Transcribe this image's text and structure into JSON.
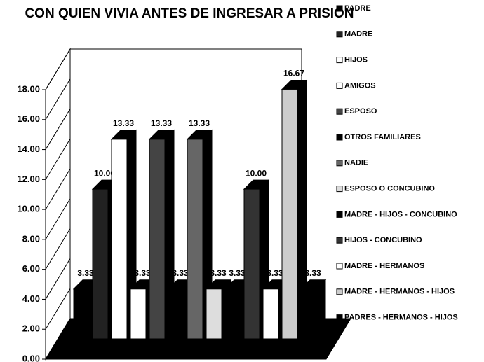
{
  "chart_data": {
    "type": "bar3d",
    "title": "CON QUIEN VIVIA ANTES DE INGRESAR A PRISION",
    "categories": [
      "PADRE",
      "MADRE",
      "HIJOS",
      "AMIGOS",
      "ESPOSO",
      "OTROS FAMILIARES",
      "NADIE",
      "ESPOSO O CONCUBINO",
      "MADRE - HIJOS - CONCUBINO",
      "HIJOS - CONCUBINO",
      "MADRE - HERMANOS",
      "MADRE - HERMANOS - HIJOS",
      "PADRES - HERMANOS  - HIJOS"
    ],
    "values": [
      3.33,
      10,
      13.33,
      3.33,
      13.33,
      3.33,
      13.33,
      3.33,
      3.33,
      10,
      3.33,
      16.67,
      3.33
    ],
    "value_labels": [
      "3.33",
      "10.00",
      "13.33",
      "3.33",
      "13.33",
      "3.33",
      "13.33",
      "3.33",
      "3.33",
      "10.00",
      "3.33",
      "16.67",
      "3.33"
    ],
    "colors": [
      "#000000",
      "#222222",
      "#ffffff",
      "#ffffff",
      "#444444",
      "#000000",
      "#666666",
      "#dddddd",
      "#000000",
      "#333333",
      "#ffffff",
      "#cccccc",
      "#000000"
    ],
    "ylim": [
      0,
      18
    ],
    "yticks": [
      {
        "value": 0,
        "label": "0.00"
      },
      {
        "value": 2,
        "label": "2.00"
      },
      {
        "value": 4,
        "label": "4.00"
      },
      {
        "value": 6,
        "label": "6.00"
      },
      {
        "value": 8,
        "label": "8.00"
      },
      {
        "value": 10,
        "label": "10.00"
      },
      {
        "value": 12,
        "label": "12.00"
      },
      {
        "value": 14,
        "label": "14.00"
      },
      {
        "value": 16,
        "label": "16.00"
      },
      {
        "value": 18,
        "label": "18.00"
      }
    ],
    "legend": "right"
  }
}
